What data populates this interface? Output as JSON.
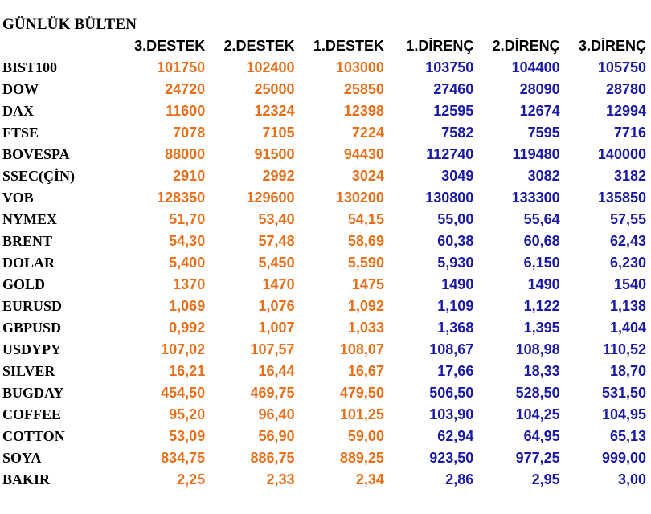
{
  "title": "GÜNLÜK BÜLTEN",
  "colors": {
    "support": "#ea6d17",
    "resistance": "#1a1aa6"
  },
  "headers": [
    "3.DESTEK",
    "2.DESTEK",
    "1.DESTEK",
    "1.DİRENÇ",
    "2.DİRENÇ",
    "3.DİRENÇ"
  ],
  "rows": [
    {
      "name": "BIST100",
      "values": [
        "101750",
        "102400",
        "103000",
        "103750",
        "104400",
        "105750"
      ]
    },
    {
      "name": "DOW",
      "values": [
        "24720",
        "25000",
        "25850",
        "27460",
        "28090",
        "28780"
      ]
    },
    {
      "name": "DAX",
      "values": [
        "11600",
        "12324",
        "12398",
        "12595",
        "12674",
        "12994"
      ]
    },
    {
      "name": "FTSE",
      "values": [
        "7078",
        "7105",
        "7224",
        "7582",
        "7595",
        "7716"
      ]
    },
    {
      "name": "BOVESPA",
      "values": [
        "88000",
        "91500",
        "94430",
        "112740",
        "119480",
        "140000"
      ]
    },
    {
      "name": "SSEC(ÇİN)",
      "values": [
        "2910",
        "2992",
        "3024",
        "3049",
        "3082",
        "3182"
      ]
    },
    {
      "name": "VOB",
      "values": [
        "128350",
        "129600",
        "130200",
        "130800",
        "133300",
        "135850"
      ]
    },
    {
      "name": "NYMEX",
      "values": [
        "51,70",
        "53,40",
        "54,15",
        "55,00",
        "55,64",
        "57,55"
      ]
    },
    {
      "name": "BRENT",
      "values": [
        "54,30",
        "57,48",
        "58,69",
        "60,38",
        "60,68",
        "62,43"
      ]
    },
    {
      "name": "DOLAR",
      "values": [
        "5,400",
        "5,450",
        "5,590",
        "5,930",
        "6,150",
        "6,230"
      ]
    },
    {
      "name": "GOLD",
      "values": [
        "1370",
        "1470",
        "1475",
        "1490",
        "1490",
        "1540"
      ]
    },
    {
      "name": "EURUSD",
      "values": [
        "1,069",
        "1,076",
        "1,092",
        "1,109",
        "1,122",
        "1,138"
      ]
    },
    {
      "name": "GBPUSD",
      "values": [
        "0,992",
        "1,007",
        "1,033",
        "1,368",
        "1,395",
        "1,404"
      ]
    },
    {
      "name": "USDYPY",
      "values": [
        "107,02",
        "107,57",
        "108,07",
        "108,67",
        "108,98",
        "110,52"
      ]
    },
    {
      "name": "SILVER",
      "values": [
        "16,21",
        "16,44",
        "16,67",
        "17,66",
        "18,33",
        "18,70"
      ]
    },
    {
      "name": "BUGDAY",
      "values": [
        "454,50",
        "469,75",
        "479,50",
        "506,50",
        "528,50",
        "531,50"
      ]
    },
    {
      "name": "COFFEE",
      "values": [
        "95,20",
        "96,40",
        "101,25",
        "103,90",
        "104,25",
        "104,95"
      ]
    },
    {
      "name": "COTTON",
      "values": [
        "53,09",
        "56,90",
        "59,00",
        "62,94",
        "64,95",
        "65,13"
      ]
    },
    {
      "name": "SOYA",
      "values": [
        "834,75",
        "886,75",
        "889,25",
        "923,50",
        "977,25",
        "999,00"
      ]
    },
    {
      "name": "BAKIR",
      "values": [
        "2,25",
        "2,33",
        "2,34",
        "2,86",
        "2,95",
        "3,00"
      ]
    }
  ]
}
